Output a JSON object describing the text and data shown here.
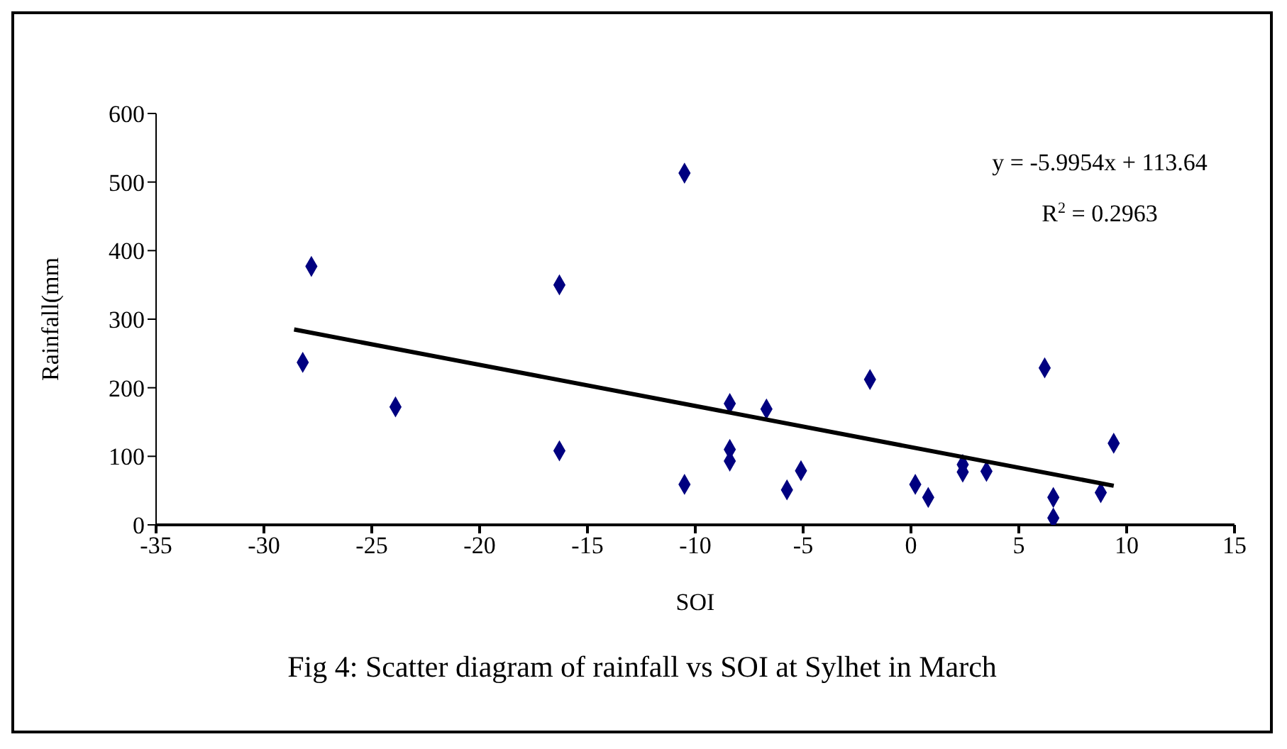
{
  "chart_data": {
    "type": "scatter",
    "title": "Fig 4: Scatter diagram of rainfall vs SOI at Sylhet in March",
    "xlabel": "SOI",
    "ylabel": "Rainfall(mm",
    "annotations": [
      "y = -5.9954x + 113.64",
      "R$^{2}$ = 0.2963"
    ],
    "xlim": [
      -35,
      15
    ],
    "xticks": [
      -35,
      -30,
      -25,
      -20,
      -15,
      -10,
      -5,
      0,
      5,
      10,
      15
    ],
    "ylim": [
      0,
      600
    ],
    "yticks": [
      0,
      100,
      200,
      300,
      400,
      500,
      600
    ],
    "grid": false,
    "series": [
      {
        "marker": "diamond",
        "color": "#000080",
        "x": [
          -27.8,
          -28.2,
          -23.9,
          -16.3,
          -16.3,
          -10.5,
          -10.5,
          -8.4,
          -8.4,
          -8.4,
          -6.7,
          -5.75,
          -5.1,
          -1.9,
          0.2,
          0.8,
          2.4,
          2.4,
          3.5,
          6.2,
          6.6,
          6.6,
          8.8,
          9.4
        ],
        "values": [
          377,
          237,
          172,
          350,
          108,
          513,
          59,
          177,
          110,
          93,
          169,
          51,
          79,
          212,
          59,
          40,
          88,
          77,
          78,
          229,
          40,
          10,
          47,
          119
        ]
      },
      {
        "type": "line",
        "color": "#000000",
        "x": [
          -28.6,
          9.4
        ],
        "values": [
          285,
          57
        ]
      }
    ]
  }
}
